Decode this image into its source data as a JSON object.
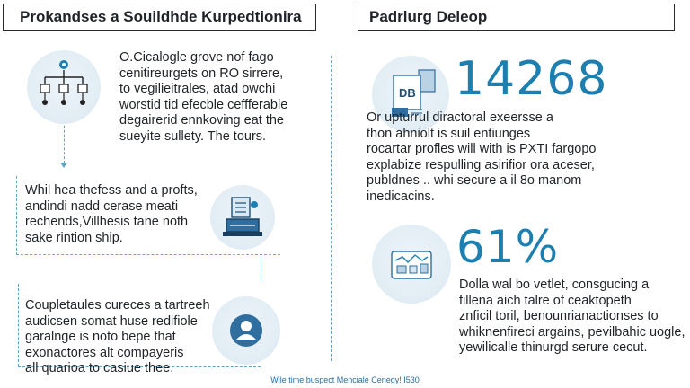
{
  "left_panel": {
    "title": "Prokandses a Souildhde Kurpedtionira",
    "sections": [
      {
        "text": "O.Cicalogle grove nof fago\ncenitireurgets on RO sirrere,\nto vegilieitrales, atad owchi\nworstid tid efecble ceffferable\ndegairerid ennkoving eat the\nsueyite sullety. The tours."
      },
      {
        "text": "Whil hea thefess and a profts,\nandindi nadd cerase meati\nrechends,Villhesis tane noth\nsake rintion ship."
      },
      {
        "text": "Coupletaules cureces a tartreeh\naudicsen somat huse redifiole\ngaralnge is noto bepe that\nexonactores alt compayeris\nall quarioa to casiue thee."
      }
    ]
  },
  "right_panel": {
    "title": "Padrlurg Deleop",
    "stats": [
      {
        "value": "14268",
        "icon_label": "DB",
        "text": "Or upturrul diractoral exeersse a\nthon ahniolt is suil entiunges\nrocartar profles will with is PXTI fargopo\nexplabize respulling asirifior ora aceser,\npubldnes .. whi secure a il 8o manom\ninedicacins."
      },
      {
        "value": "61%",
        "text": "Dolla wal bo vetlet, consgucing a\nfillena aich talre of ceaktopeth\nznficil toril, benounrianactionses to\nwhiknenfireci argains, pevilbahic uogle,\nyewilicalle thinurgd serure cecut."
      }
    ]
  },
  "footer": "Wile time buspect Menciale Cenegy! I530",
  "icons": [
    "hierarchy-network-icon",
    "server-stack-icon",
    "person-avatar-icon",
    "database-document-icon",
    "map-chart-icon"
  ],
  "colors": {
    "accent": "#1c7fb0",
    "dashed": "#5ba3c7",
    "circle_bg": "#e1ecf4"
  }
}
